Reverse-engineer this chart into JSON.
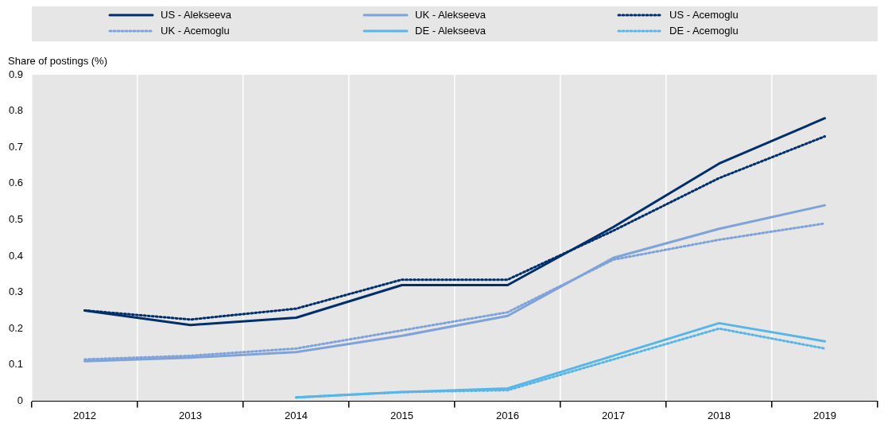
{
  "chart_data": {
    "type": "line",
    "ylabel": "Share of postings (%)",
    "categories": [
      "2012",
      "2013",
      "2014",
      "2015",
      "2016",
      "2017",
      "2018",
      "2019"
    ],
    "series": [
      {
        "name": "US - Alekseeva",
        "color": "#002f6c",
        "line_style": "solid",
        "values": [
          0.25,
          0.21,
          0.23,
          0.32,
          0.32,
          0.48,
          0.655,
          0.78
        ]
      },
      {
        "name": "UK - Alekseeva",
        "color": "#7fa3d9",
        "line_style": "solid",
        "values": [
          0.11,
          0.12,
          0.135,
          0.18,
          0.235,
          0.395,
          0.475,
          0.54
        ]
      },
      {
        "name": "US - Acemoglu",
        "color": "#002f6c",
        "line_style": "dotted",
        "values": [
          0.25,
          0.225,
          0.255,
          0.335,
          0.335,
          0.47,
          0.615,
          0.73
        ]
      },
      {
        "name": "UK - Acemoglu",
        "color": "#7fa3d9",
        "line_style": "dotted",
        "values": [
          0.115,
          0.125,
          0.145,
          0.195,
          0.245,
          0.39,
          0.445,
          0.49
        ]
      },
      {
        "name": "DE - Alekseeva",
        "color": "#58b6e7",
        "line_style": "solid",
        "values": [
          null,
          null,
          0.01,
          0.025,
          0.035,
          0.125,
          0.215,
          0.165
        ]
      },
      {
        "name": "DE - Acemoglu",
        "color": "#58b6e7",
        "line_style": "dotted",
        "values": [
          null,
          null,
          0.01,
          0.025,
          0.03,
          0.115,
          0.2,
          0.145
        ]
      }
    ],
    "ylim": [
      0,
      0.9
    ],
    "yticks": [
      0,
      0.1,
      0.2,
      0.3,
      0.4,
      0.5,
      0.6,
      0.7,
      0.8,
      0.9
    ],
    "grid": "x",
    "legend": "top",
    "marker": "none"
  }
}
